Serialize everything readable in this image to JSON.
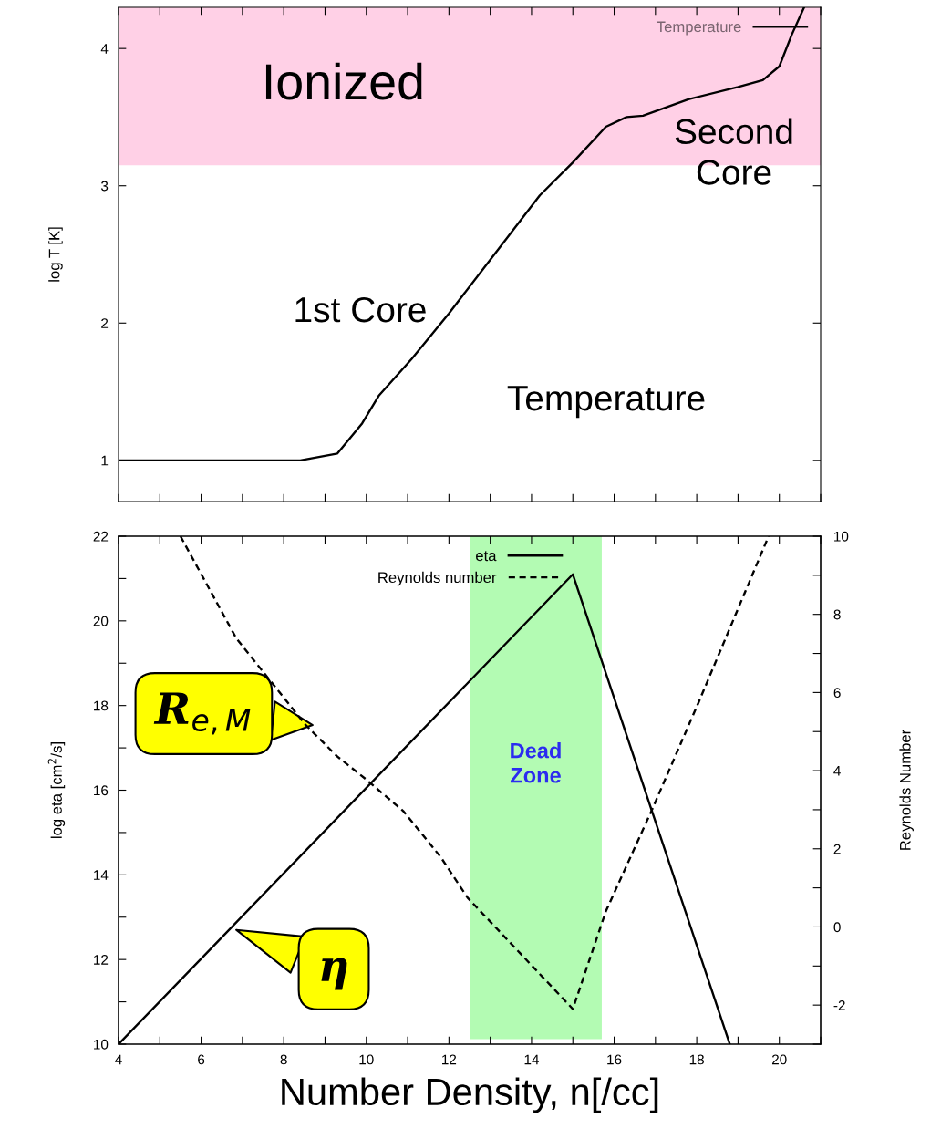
{
  "chart_data": [
    {
      "type": "line",
      "ylabel": "log T [K]",
      "series": [
        {
          "name": "Temperature",
          "color": "#000000",
          "x": [
            4,
            8.4,
            9.3,
            9.9,
            10.3,
            11.1,
            12.0,
            13.1,
            14.2,
            15.0,
            15.8,
            16.3,
            16.7,
            17.8,
            19.0,
            19.6,
            20.0,
            20.3,
            20.6
          ],
          "values": [
            1,
            1,
            1.05,
            1.27,
            1.47,
            1.74,
            2.07,
            2.5,
            2.93,
            3.17,
            3.43,
            3.5,
            3.51,
            3.63,
            3.72,
            3.77,
            3.87,
            4.1,
            4.3
          ]
        }
      ],
      "xlim": [
        4,
        21
      ],
      "xticks": [
        {
          "value": 4,
          "label": null
        },
        {
          "value": 5,
          "label": null
        },
        {
          "value": 6,
          "label": null
        },
        {
          "value": 7,
          "label": null
        },
        {
          "value": 8,
          "label": null
        },
        {
          "value": 9,
          "label": null
        },
        {
          "value": 10,
          "label": null
        },
        {
          "value": 11,
          "label": null
        },
        {
          "value": 12,
          "label": null
        },
        {
          "value": 13,
          "label": null
        },
        {
          "value": 14,
          "label": null
        },
        {
          "value": 15,
          "label": null
        },
        {
          "value": 16,
          "label": null
        },
        {
          "value": 17,
          "label": null
        },
        {
          "value": 18,
          "label": null
        },
        {
          "value": 19,
          "label": null
        },
        {
          "value": 20,
          "label": null
        },
        {
          "value": 21,
          "label": null
        }
      ],
      "ylim": [
        0.7,
        4.3
      ],
      "yticks": [
        1,
        2,
        3,
        4
      ],
      "tick_labels": "y",
      "legend": "top right",
      "line_style": "solid",
      "bands": [
        {
          "axis": "y",
          "from": 3.15,
          "to": 4.3,
          "label": "Ionized",
          "color": "#ffd0e6"
        }
      ],
      "annotations": [
        "1st Core",
        "Second\nCore",
        "Temperature"
      ]
    },
    {
      "type": "line",
      "xlabel": "Number Density, n[/cc]",
      "ylabel": "log eta [cm$^{2}$/s]",
      "y2label": "Reynolds Number",
      "series": [
        {
          "name": "eta",
          "color": "#000000",
          "line_style": "solid",
          "x": [
            4,
            15.0,
            18.8
          ],
          "values": [
            10,
            21.1,
            10
          ]
        },
        {
          "name": "Reynolds number",
          "color": "#000000",
          "line_style": "dashed",
          "axis": "y2",
          "x": [
            5.5,
            6.85,
            8.53,
            9.3,
            9.99,
            10.9,
            11.8,
            12.45,
            15.0,
            15.8,
            16.9,
            18.05,
            19.74
          ],
          "values": [
            10,
            7.39,
            5.17,
            4.36,
            3.78,
            2.96,
            1.79,
            0.75,
            -2.1,
            0.4,
            2.96,
            5.76,
            10
          ]
        }
      ],
      "xlim": [
        4,
        21
      ],
      "xticks": [
        4,
        {
          "value": 5,
          "label": null
        },
        6,
        {
          "value": 7,
          "label": null
        },
        8,
        {
          "value": 9,
          "label": null
        },
        10,
        {
          "value": 11,
          "label": null
        },
        12,
        {
          "value": 13,
          "label": null
        },
        14,
        {
          "value": 15,
          "label": null
        },
        16,
        {
          "value": 17,
          "label": null
        },
        18,
        {
          "value": 19,
          "label": null
        },
        20,
        {
          "value": 21,
          "label": null
        }
      ],
      "ylim": [
        10,
        22
      ],
      "yticks": [
        10,
        {
          "value": 11,
          "label": null
        },
        12,
        {
          "value": 13,
          "label": null
        },
        14,
        {
          "value": 15,
          "label": null
        },
        16,
        {
          "value": 17,
          "label": null
        },
        18,
        {
          "value": 19,
          "label": null
        },
        20,
        {
          "value": 21,
          "label": null
        },
        22
      ],
      "y2lim": [
        -3,
        10
      ],
      "y2ticks": [
        {
          "value": -3,
          "label": null
        },
        -2,
        {
          "value": -1,
          "label": null
        },
        0,
        {
          "value": 1,
          "label": null
        },
        2,
        {
          "value": 3,
          "label": null
        },
        4,
        {
          "value": 5,
          "label": null
        },
        6,
        {
          "value": 7,
          "label": null
        },
        8,
        {
          "value": 9,
          "label": null
        },
        10
      ],
      "legend": "top",
      "bands": [
        {
          "axis": "x",
          "from": 12.5,
          "to": 15.7,
          "label": "Dead\nZone",
          "color": "#b3fbb3"
        }
      ],
      "annotations": [
        {
          "text": "R$_{e,M}$",
          "x": 8.7,
          "y": 17.54
        },
        {
          "text": "η",
          "x": 6.85,
          "y": 12.7
        }
      ]
    }
  ]
}
